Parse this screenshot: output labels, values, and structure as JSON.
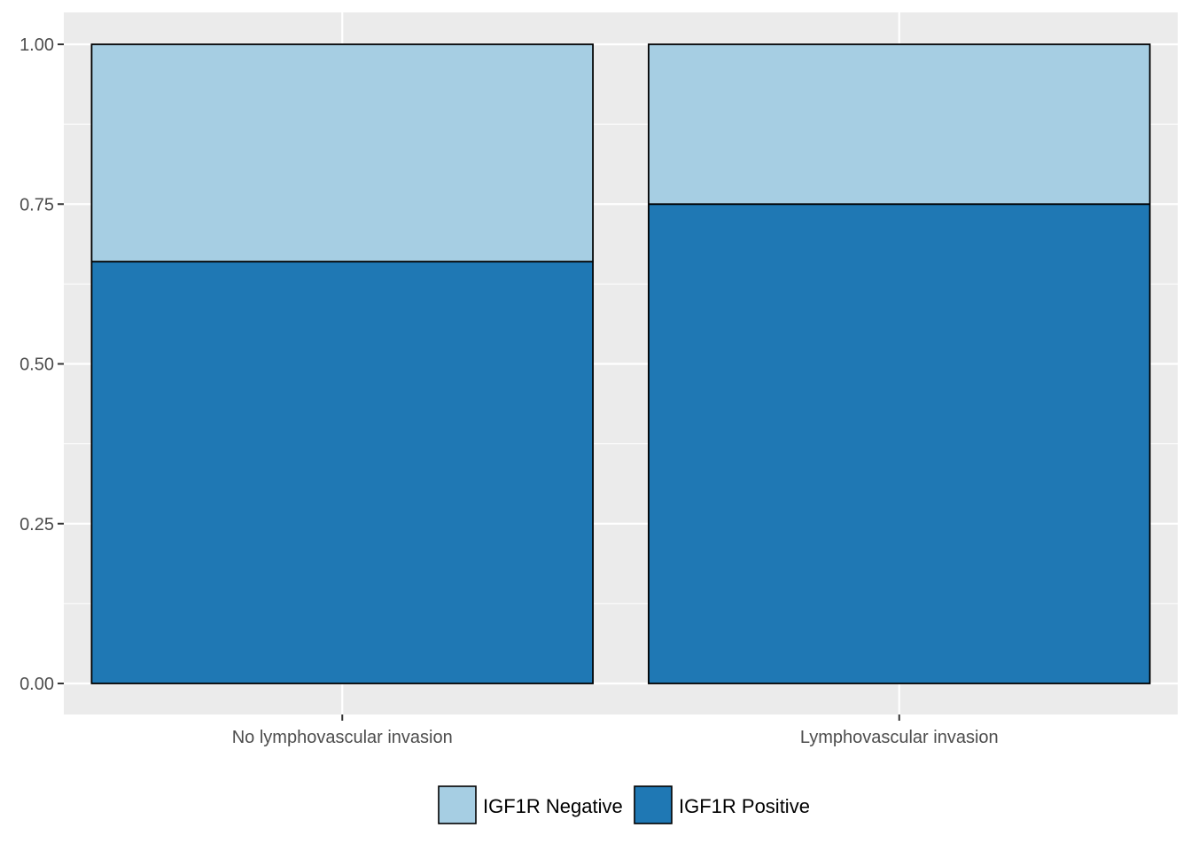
{
  "chart_data": {
    "type": "bar",
    "stacked": true,
    "categories": [
      "No lymphovascular invasion",
      "Lymphovascular invasion"
    ],
    "series": [
      {
        "name": "IGF1R Positive",
        "values": [
          0.66,
          0.75
        ],
        "color": "#1F78B4"
      },
      {
        "name": "IGF1R Negative",
        "values": [
          0.34,
          0.25
        ],
        "color": "#A6CEE3"
      }
    ],
    "yticks": [
      "0.00",
      "0.25",
      "0.50",
      "0.75",
      "1.00"
    ],
    "ylim": [
      0,
      1
    ],
    "xlabel": "",
    "ylabel": "",
    "title": "",
    "grid": true,
    "legend_position": "bottom",
    "legend": [
      "IGF1R Negative",
      "IGF1R Positive"
    ],
    "panel_background": "#EBEBEB",
    "gridline_color": "#FFFFFF"
  }
}
